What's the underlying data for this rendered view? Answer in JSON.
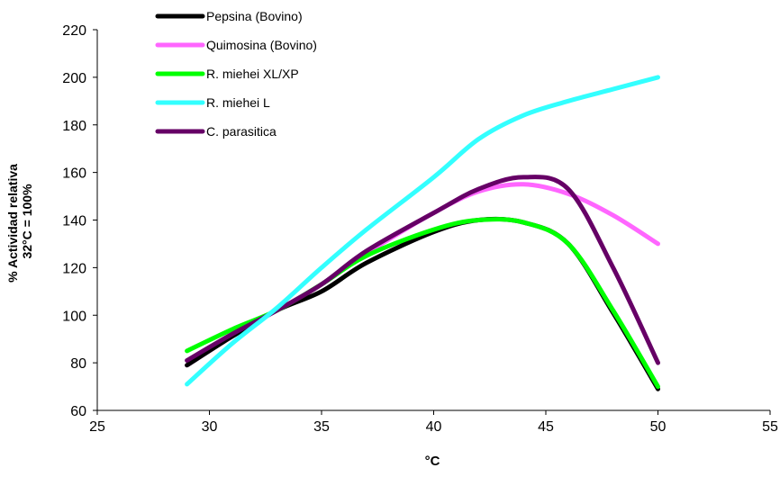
{
  "chart_data": {
    "type": "line",
    "title": "",
    "xlabel": "°C",
    "ylabel_lines": [
      "% Actividad relativa",
      "32°C = 100%"
    ],
    "xlim": [
      25,
      55
    ],
    "ylim": [
      60,
      220
    ],
    "xticks": [
      25,
      30,
      35,
      40,
      45,
      50,
      55
    ],
    "yticks": [
      60,
      80,
      100,
      120,
      140,
      160,
      180,
      200,
      220
    ],
    "grid": false,
    "legend_position": "top-left",
    "series": [
      {
        "name": "Pepsina (Bovino)",
        "color": "#000000",
        "points": [
          [
            29,
            79
          ],
          [
            31,
            91
          ],
          [
            33,
            102
          ],
          [
            35,
            110
          ],
          [
            37,
            122
          ],
          [
            40,
            135
          ],
          [
            42,
            140
          ],
          [
            44,
            139
          ],
          [
            46,
            130
          ],
          [
            48,
            101
          ],
          [
            50,
            69
          ]
        ]
      },
      {
        "name": "Quimosina (Bovino)",
        "color": "#ff66ff",
        "points": [
          [
            29,
            79
          ],
          [
            31,
            91
          ],
          [
            33,
            102
          ],
          [
            35,
            113
          ],
          [
            37,
            126
          ],
          [
            40,
            143
          ],
          [
            42,
            152
          ],
          [
            44,
            155
          ],
          [
            46,
            151
          ],
          [
            48,
            142
          ],
          [
            50,
            130
          ]
        ]
      },
      {
        "name": "R. miehei XL/XP",
        "color": "#00ff00",
        "points": [
          [
            29,
            85
          ],
          [
            31,
            94
          ],
          [
            33,
            102
          ],
          [
            35,
            113
          ],
          [
            37,
            125
          ],
          [
            40,
            136
          ],
          [
            42,
            140
          ],
          [
            44,
            139
          ],
          [
            46,
            130
          ],
          [
            48,
            102
          ],
          [
            50,
            70
          ]
        ]
      },
      {
        "name": "R. miehei L",
        "color": "#33ffff",
        "points": [
          [
            29,
            71
          ],
          [
            31,
            88
          ],
          [
            33,
            103
          ],
          [
            35,
            120
          ],
          [
            37,
            136
          ],
          [
            40,
            158
          ],
          [
            42,
            174
          ],
          [
            44,
            184
          ],
          [
            46,
            190
          ],
          [
            48,
            195
          ],
          [
            50,
            200
          ]
        ]
      },
      {
        "name": "C. parasitica",
        "color": "#660066",
        "points": [
          [
            29,
            81
          ],
          [
            31,
            92
          ],
          [
            33,
            102
          ],
          [
            35,
            113
          ],
          [
            37,
            127
          ],
          [
            40,
            143
          ],
          [
            42,
            153
          ],
          [
            44,
            158
          ],
          [
            46,
            153
          ],
          [
            48,
            120
          ],
          [
            50,
            80
          ]
        ]
      }
    ]
  }
}
